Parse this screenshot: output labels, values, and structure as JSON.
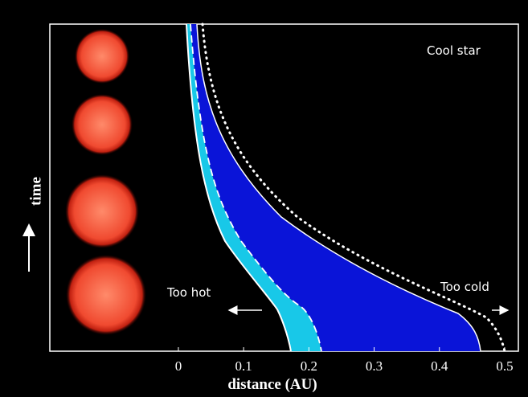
{
  "chart_data": {
    "type": "diagram",
    "xlabel": "distance (AU)",
    "ylabel": "time",
    "annotations": [
      "Cool star",
      "Too hot",
      "Too cold"
    ],
    "xlim": [
      -0.197,
      0.521
    ],
    "xticks": [
      0,
      0.1,
      0.2,
      0.3,
      0.4,
      0.5
    ]
  }
}
